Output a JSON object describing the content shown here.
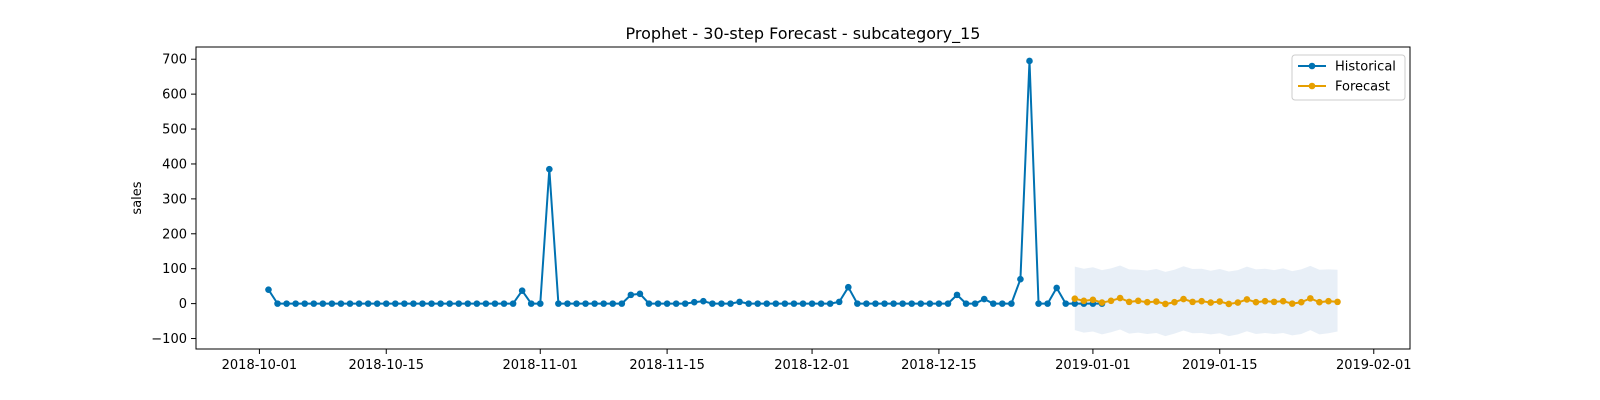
{
  "chart_data": {
    "type": "line",
    "title": "Prophet - 30-step Forecast - subcategory_15",
    "xlabel": "",
    "ylabel": "sales",
    "xlim": [
      "2018-09-24",
      "2019-02-05"
    ],
    "ylim": [
      -130,
      735
    ],
    "x_ticks": [
      "2018-10-01",
      "2018-10-15",
      "2018-11-01",
      "2018-11-15",
      "2018-12-01",
      "2018-12-15",
      "2019-01-01",
      "2019-01-15",
      "2019-02-01"
    ],
    "y_ticks": [
      -100,
      0,
      100,
      200,
      300,
      400,
      500,
      600,
      700
    ],
    "grid": false,
    "legend_position": "top-right",
    "colors": {
      "historical": "#0072B2",
      "forecast": "#E69F00",
      "interval": "#dbe6f2"
    },
    "series": [
      {
        "name": "Historical",
        "start": "2018-10-02",
        "values": [
          40,
          0,
          0,
          0,
          0,
          0,
          0,
          0,
          0,
          0,
          0,
          0,
          0,
          0,
          0,
          0,
          0,
          0,
          0,
          0,
          0,
          0,
          0,
          0,
          0,
          0,
          0,
          0,
          37,
          0,
          0,
          385,
          0,
          0,
          0,
          0,
          0,
          0,
          0,
          0,
          25,
          28,
          0,
          0,
          0,
          0,
          0,
          4,
          7,
          0,
          0,
          0,
          5,
          0,
          0,
          0,
          0,
          0,
          0,
          0,
          0,
          0,
          0,
          5,
          47,
          0,
          0,
          0,
          0,
          0,
          0,
          0,
          0,
          0,
          0,
          0,
          25,
          0,
          0,
          13,
          0,
          0,
          0,
          70,
          695,
          0,
          0,
          45,
          0,
          0,
          0,
          0,
          0
        ]
      },
      {
        "name": "Forecast",
        "start": "2018-12-30",
        "values": [
          14,
          8,
          11,
          3,
          8,
          16,
          5,
          8,
          4,
          6,
          -1,
          4,
          13,
          5,
          7,
          3,
          6,
          -1,
          3,
          12,
          4,
          7,
          5,
          7,
          0,
          4,
          15,
          4,
          7,
          5
        ],
        "upper": [
          106,
          100,
          104,
          96,
          101,
          109,
          98,
          97,
          95,
          99,
          91,
          97,
          107,
          99,
          100,
          94,
          99,
          92,
          96,
          106,
          98,
          100,
          96,
          101,
          93,
          98,
          108,
          97,
          98,
          97
        ],
        "lower": [
          -76,
          -83,
          -80,
          -88,
          -82,
          -74,
          -86,
          -83,
          -87,
          -84,
          -93,
          -86,
          -77,
          -85,
          -84,
          -88,
          -85,
          -93,
          -88,
          -79,
          -87,
          -84,
          -87,
          -84,
          -91,
          -87,
          -76,
          -88,
          -85,
          -80
        ]
      }
    ]
  }
}
